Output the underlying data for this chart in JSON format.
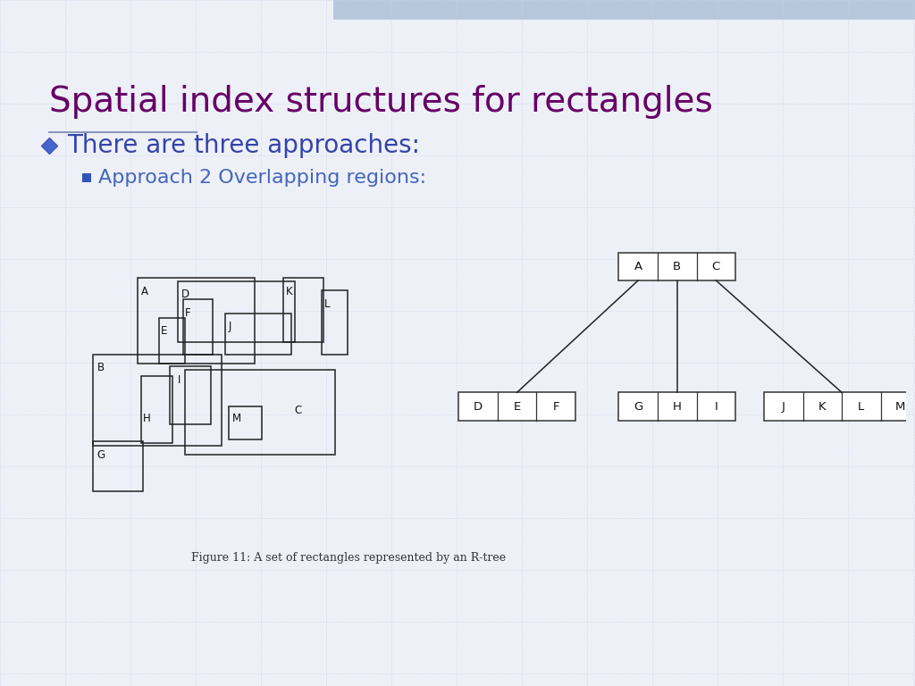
{
  "title": "Spatial index structures for rectangles",
  "title_color": "#660066",
  "title_fontsize": 28,
  "bullet1": "There are three approaches:",
  "bullet1_color": "#3344aa",
  "bullet1_fontsize": 20,
  "bullet2": "Approach 2 Overlapping regions:",
  "bullet2_color": "#4466bb",
  "bullet2_fontsize": 16,
  "figure_caption": "Figure 11: A set of rectangles represented by an R-tree",
  "bg_color": "#eef0f8",
  "grid_color": "#c8d0e8",
  "header_color": "#b8c8dc"
}
